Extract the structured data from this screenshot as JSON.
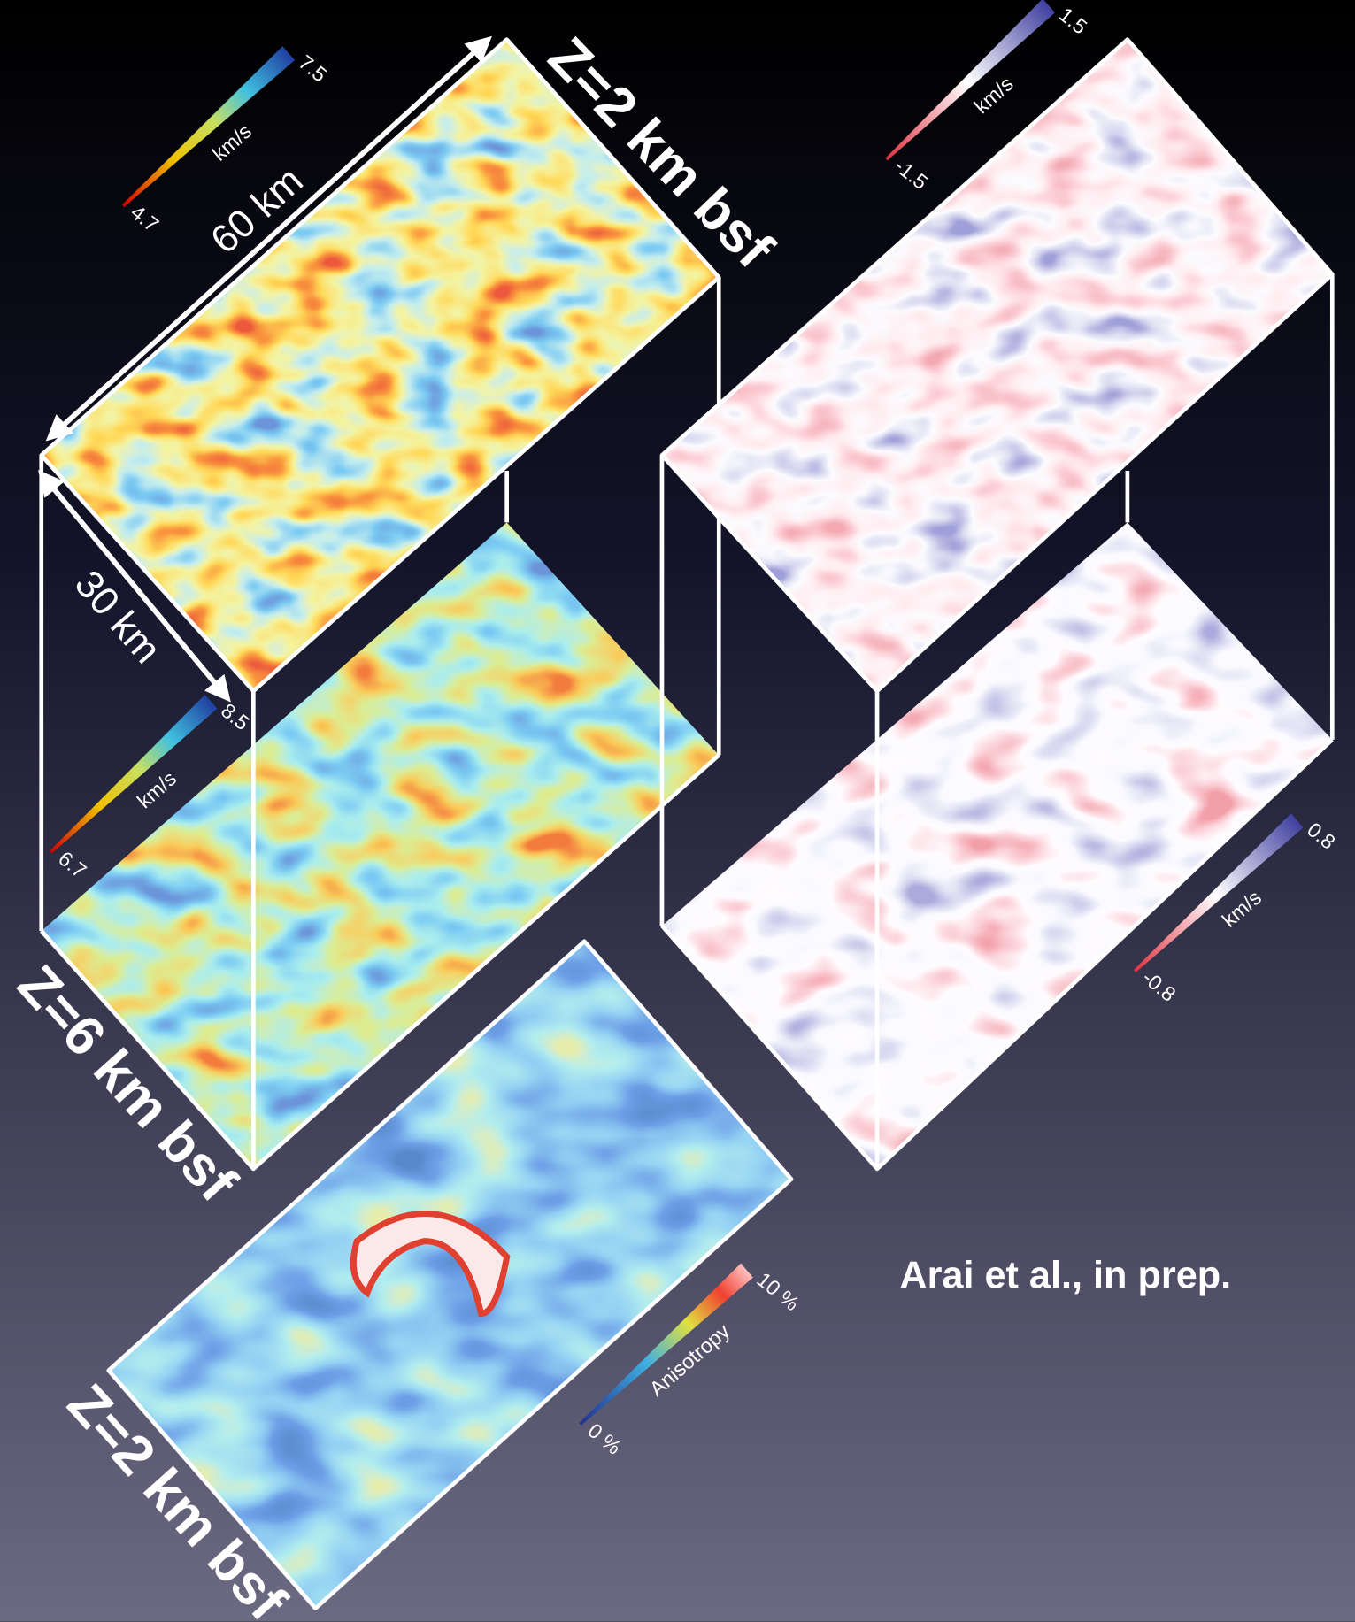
{
  "panels": {
    "velocity_top": {
      "title": "Z=2 km bsf",
      "width_label": "60 km",
      "depth_label": "30 km",
      "colorbar": {
        "min": "4.7",
        "max": "7.5",
        "unit": "km/s"
      }
    },
    "velocity_bottom": {
      "title": "Z=6 km bsf",
      "colorbar": {
        "min": "6.7",
        "max": "8.5",
        "unit": "km/s"
      }
    },
    "perturbation_top": {
      "colorbar": {
        "min": "-1.5",
        "max": "1.5",
        "unit": "km/s"
      }
    },
    "perturbation_bottom": {
      "colorbar": {
        "min": "-0.8",
        "max": "0.8",
        "unit": "km/s"
      }
    },
    "anisotropy": {
      "title": "Z=2 km bsf",
      "colorbar": {
        "min": "0 %",
        "max": "10 %",
        "unit": "Anisotropy"
      }
    }
  },
  "credit": "Arai et al., in prep."
}
